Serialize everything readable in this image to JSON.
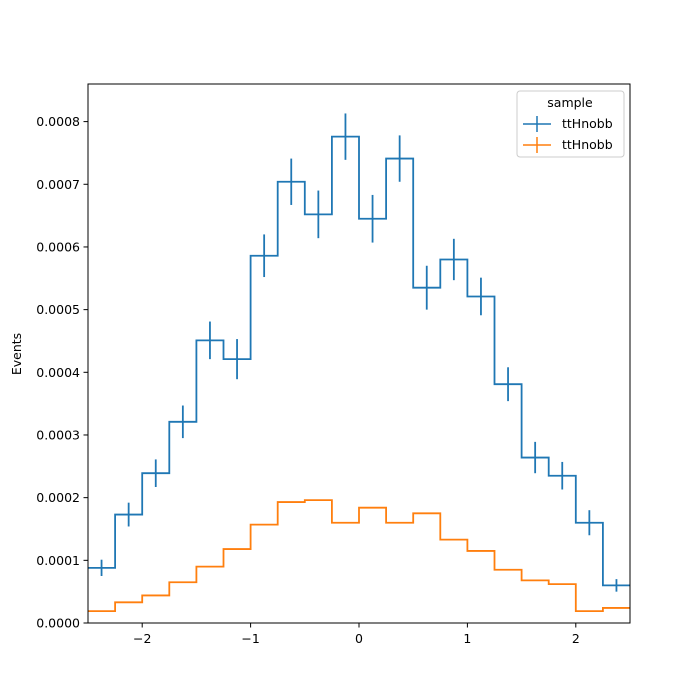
{
  "chart_data": {
    "type": "histogram",
    "ylabel": "Events",
    "xlabel": "",
    "xlim": [
      -2.5,
      2.5
    ],
    "ylim": [
      0,
      0.00086
    ],
    "x_ticks": [
      -2,
      -1,
      0,
      1,
      2
    ],
    "x_tick_labels": [
      "−2",
      "−1",
      "0",
      "1",
      "2"
    ],
    "y_ticks": [
      0,
      0.0001,
      0.0002,
      0.0003,
      0.0004,
      0.0005,
      0.0006,
      0.0007,
      0.0008
    ],
    "y_tick_labels": [
      "0.0000",
      "0.0001",
      "0.0002",
      "0.0003",
      "0.0004",
      "0.0005",
      "0.0006",
      "0.0007",
      "0.0008"
    ],
    "bin_edges": [
      -2.5,
      -2.25,
      -2.0,
      -1.75,
      -1.5,
      -1.25,
      -1.0,
      -0.75,
      -0.5,
      -0.25,
      0.0,
      0.25,
      0.5,
      0.75,
      1.0,
      1.25,
      1.5,
      1.75,
      2.0,
      2.25,
      2.5
    ],
    "legend": {
      "title": "sample",
      "position": "upper right"
    },
    "series": [
      {
        "name": "ttHnobb",
        "color": "#1f77b4",
        "values": [
          8.8e-05,
          0.000173,
          0.000239,
          0.000321,
          0.000451,
          0.000421,
          0.000586,
          0.000704,
          0.000652,
          0.000776,
          0.000645,
          0.000741,
          0.000535,
          0.00058,
          0.000521,
          0.000381,
          0.000264,
          0.000235,
          0.00016,
          6e-05
        ],
        "errors": [
          1.3e-05,
          1.9e-05,
          2.2e-05,
          2.6e-05,
          3e-05,
          3.2e-05,
          3.4e-05,
          3.7e-05,
          3.8e-05,
          3.7e-05,
          3.8e-05,
          3.7e-05,
          3.5e-05,
          3.3e-05,
          3e-05,
          2.7e-05,
          2.5e-05,
          2.2e-05,
          2e-05,
          1e-05
        ]
      },
      {
        "name": "ttHnobb",
        "color": "#ff7f0e",
        "values": [
          1.9e-05,
          3.3e-05,
          4.4e-05,
          6.5e-05,
          9e-05,
          0.000118,
          0.000157,
          0.000193,
          0.000196,
          0.00016,
          0.000184,
          0.00016,
          0.000175,
          0.000133,
          0.000115,
          8.5e-05,
          6.8e-05,
          6.2e-05,
          1.9e-05,
          2.4e-05
        ]
      }
    ]
  }
}
